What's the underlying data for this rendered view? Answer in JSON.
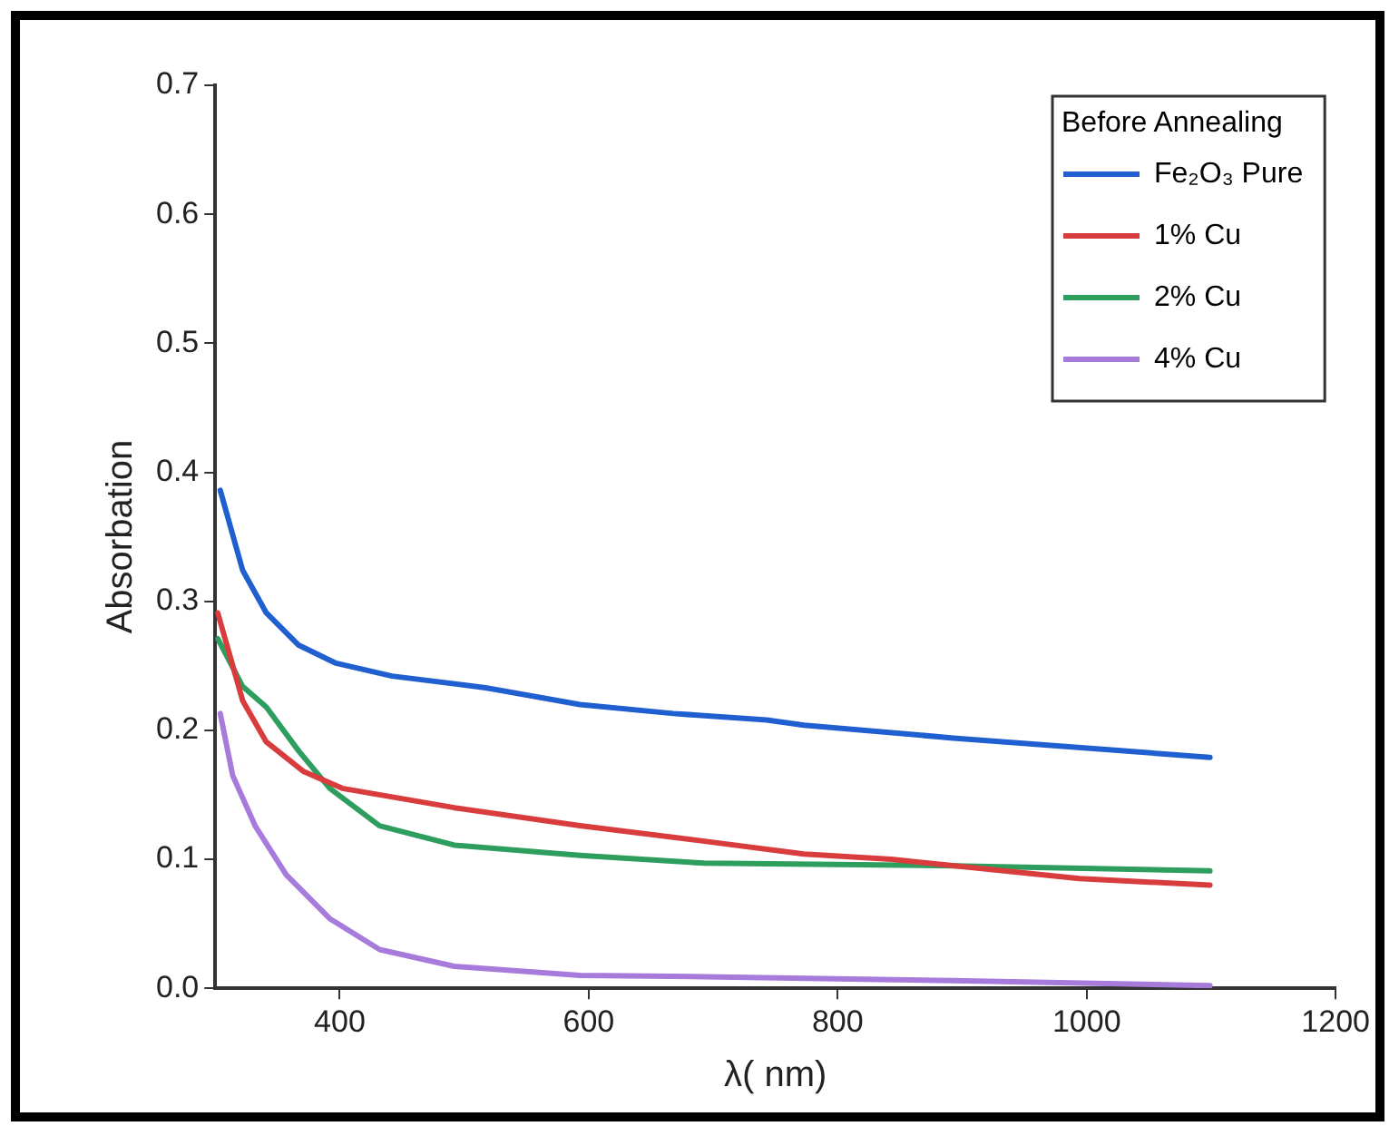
{
  "chart_data": {
    "type": "line",
    "xlabel": "λ( nm)",
    "ylabel": "Absorbation",
    "legend_title": "Before Annealing",
    "legend": "top right",
    "grid": false,
    "xlim": [
      300,
      1200
    ],
    "xticks": [
      400,
      600,
      800,
      1000,
      1200
    ],
    "ylim": [
      0,
      0.7
    ],
    "yticks": [
      {
        "value": 0,
        "label": "0.0"
      },
      0.1,
      0.2,
      0.3,
      0.4,
      0.5,
      0.6,
      0.7
    ],
    "series": [
      {
        "name": "Fe₂O₃ Pure",
        "color": "#1f5fd0",
        "x": [
          304,
          322,
          341,
          367,
          397,
          442,
          517,
          593,
          668,
          743,
          773,
          893,
          1099
        ],
        "values": [
          0.386,
          0.324,
          0.291,
          0.266,
          0.252,
          0.242,
          0.233,
          0.22,
          0.213,
          0.208,
          0.204,
          0.194,
          0.179
        ]
      },
      {
        "name": "1% Cu",
        "color": "#d83c3c",
        "x": [
          302,
          322,
          341,
          371,
          402,
          492,
          593,
          693,
          773,
          843,
          994,
          1099
        ],
        "values": [
          0.291,
          0.223,
          0.191,
          0.168,
          0.155,
          0.14,
          0.126,
          0.114,
          0.104,
          0.1,
          0.085,
          0.08
        ]
      },
      {
        "name": "2% Cu",
        "color": "#2e9e5e",
        "x": [
          302,
          322,
          341,
          367,
          392,
          432,
          492,
          593,
          693,
          893,
          1099
        ],
        "values": [
          0.271,
          0.234,
          0.218,
          0.184,
          0.155,
          0.126,
          0.111,
          0.103,
          0.097,
          0.095,
          0.091
        ]
      },
      {
        "name": "4% Cu",
        "color": "#a77bdc",
        "x": [
          304,
          314,
          332,
          357,
          392,
          432,
          492,
          593,
          693,
          893,
          1099
        ],
        "values": [
          0.213,
          0.165,
          0.126,
          0.088,
          0.054,
          0.03,
          0.017,
          0.01,
          0.009,
          0.006,
          0.002
        ]
      }
    ]
  }
}
